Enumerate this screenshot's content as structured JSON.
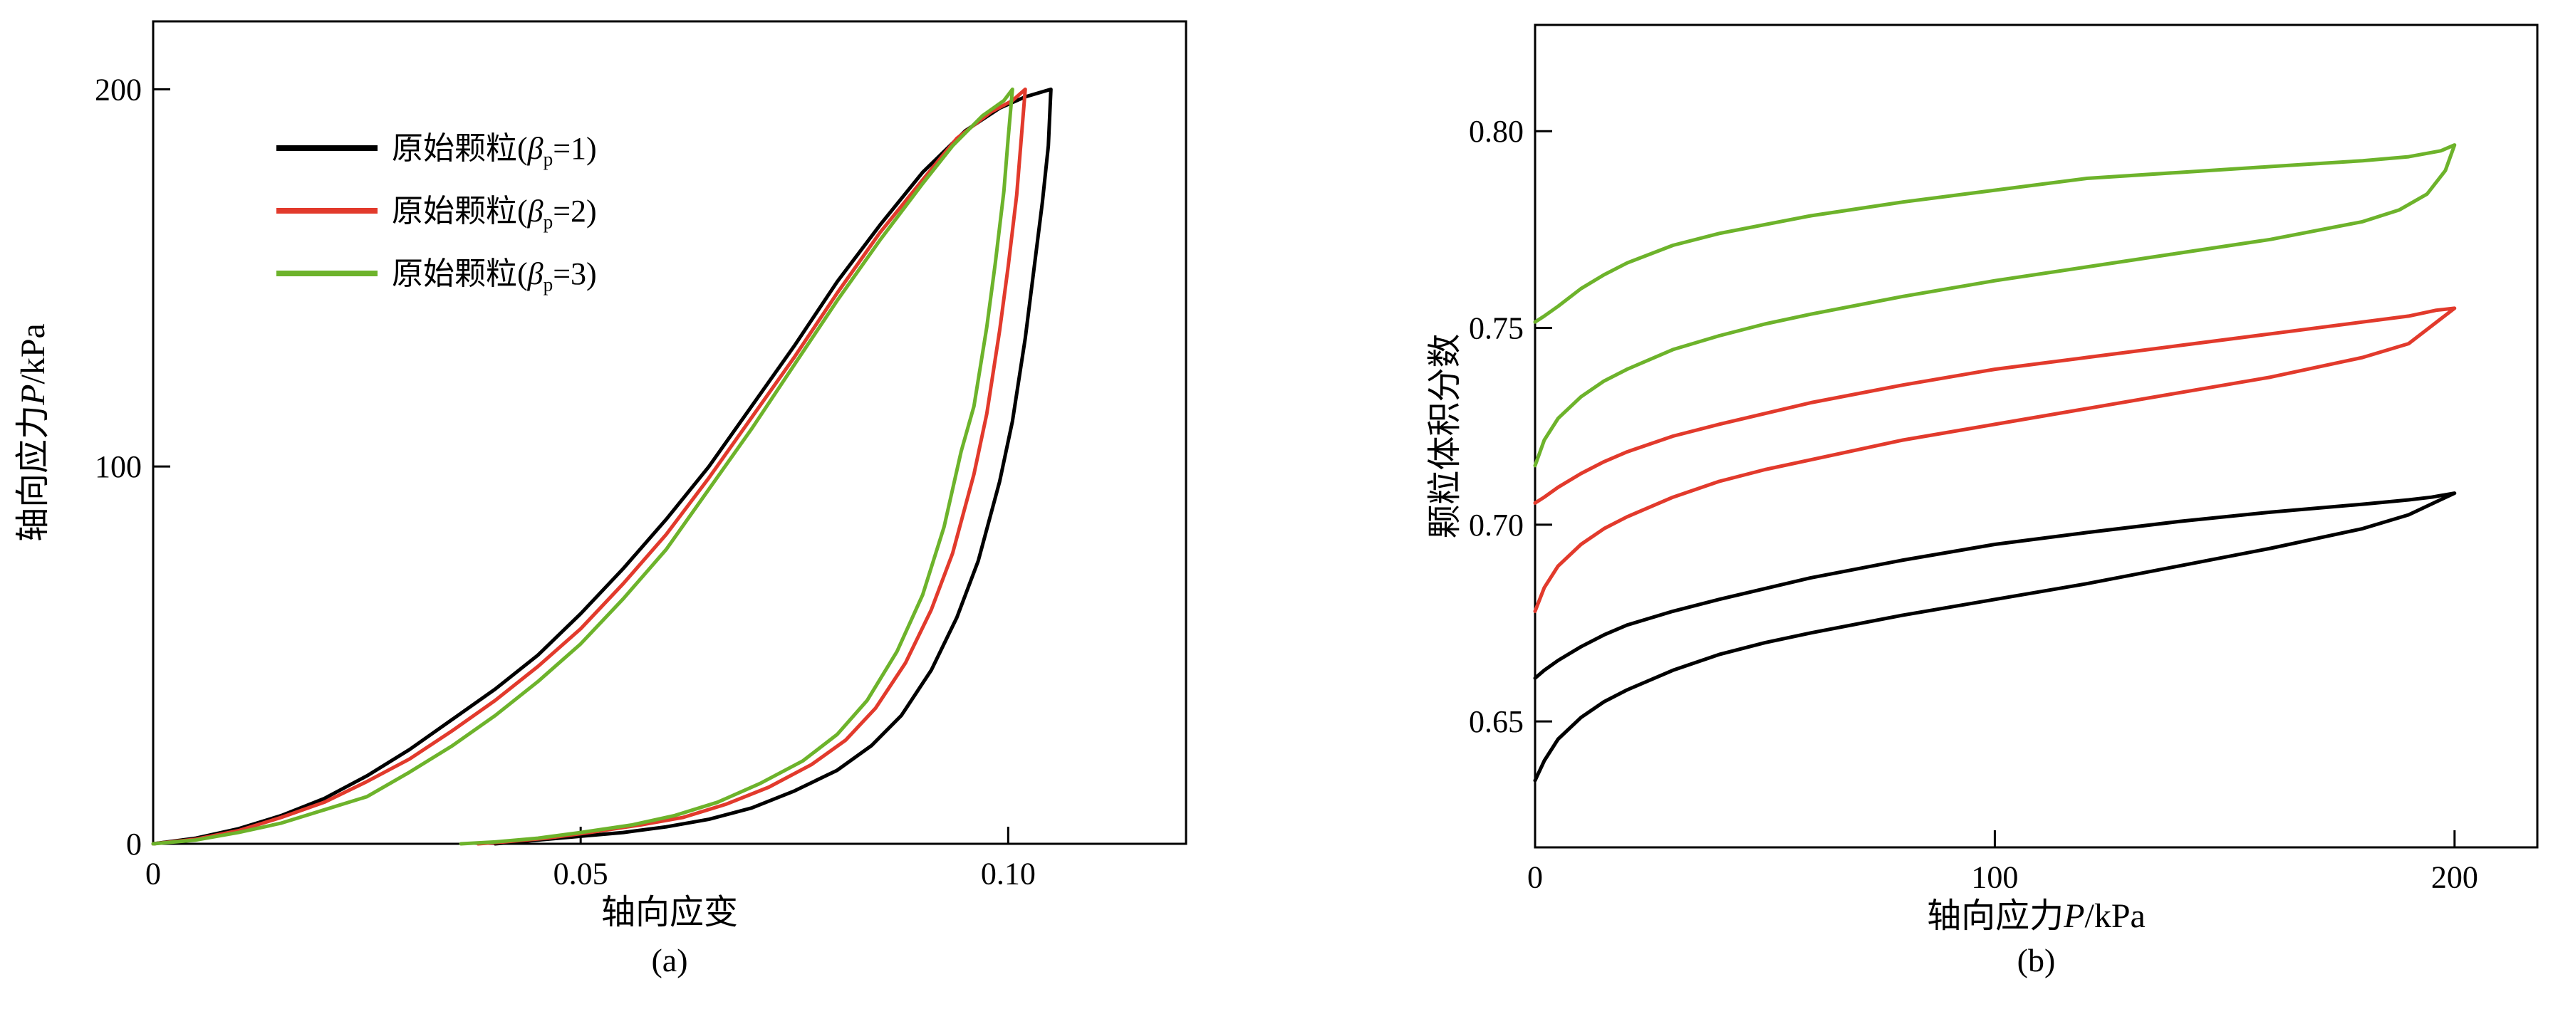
{
  "figure": {
    "background": "#ffffff",
    "axis_color": "#000000"
  },
  "chart_data": [
    {
      "id": "a",
      "type": "line",
      "caption": "(a)",
      "xlabel_parts": [
        {
          "t": "轴向应变"
        }
      ],
      "ylabel_parts": [
        {
          "t": "轴向应力"
        },
        {
          "t": "P",
          "i": true
        },
        {
          "t": "/kPa"
        }
      ],
      "xlim": [
        0,
        0.1208
      ],
      "ylim": [
        0,
        218
      ],
      "xticks": [
        0,
        0.05,
        0.1
      ],
      "xtick_labels": [
        "0",
        "0.05",
        "0.10"
      ],
      "yticks": [
        0,
        100,
        200
      ],
      "ytick_labels": [
        "0",
        "100",
        "200"
      ],
      "grid": false,
      "legend_position": "upper-left",
      "legend": [
        {
          "name": "original-particles-beta-1",
          "color": "#000000",
          "parts": [
            {
              "t": "原始颗粒("
            },
            {
              "t": "β",
              "i": true
            },
            {
              "t": "p",
              "sub": true
            },
            {
              "t": "=1)"
            }
          ]
        },
        {
          "name": "original-particles-beta-2",
          "color": "#e23a2c",
          "parts": [
            {
              "t": "原始颗粒("
            },
            {
              "t": "β",
              "i": true
            },
            {
              "t": "p",
              "sub": true
            },
            {
              "t": "=2)"
            }
          ]
        },
        {
          "name": "original-particles-beta-3",
          "color": "#6db32b",
          "parts": [
            {
              "t": "原始颗粒("
            },
            {
              "t": "β",
              "i": true
            },
            {
              "t": "p",
              "sub": true
            },
            {
              "t": "=3)"
            }
          ]
        }
      ],
      "series": [
        {
          "name": "original-particles-beta-1",
          "color": "#000000",
          "points": [
            [
              0,
              0
            ],
            [
              0.005,
              1.5
            ],
            [
              0.01,
              4
            ],
            [
              0.015,
              7.5
            ],
            [
              0.02,
              12
            ],
            [
              0.025,
              18
            ],
            [
              0.03,
              25
            ],
            [
              0.035,
              33
            ],
            [
              0.04,
              41
            ],
            [
              0.045,
              50
            ],
            [
              0.05,
              61
            ],
            [
              0.055,
              73
            ],
            [
              0.06,
              86
            ],
            [
              0.065,
              100
            ],
            [
              0.07,
              116
            ],
            [
              0.075,
              132
            ],
            [
              0.08,
              149
            ],
            [
              0.085,
              164
            ],
            [
              0.09,
              178
            ],
            [
              0.095,
              189
            ],
            [
              0.099,
              195
            ],
            [
              0.102,
              198
            ],
            [
              0.105,
              200
            ],
            [
              0.1047,
              185
            ],
            [
              0.104,
              170
            ],
            [
              0.103,
              152
            ],
            [
              0.102,
              134
            ],
            [
              0.1005,
              112
            ],
            [
              0.099,
              96
            ],
            [
              0.0965,
              75
            ],
            [
              0.094,
              60
            ],
            [
              0.091,
              46
            ],
            [
              0.0875,
              34
            ],
            [
              0.084,
              26
            ],
            [
              0.08,
              19.5
            ],
            [
              0.075,
              14
            ],
            [
              0.07,
              9.5
            ],
            [
              0.065,
              6.5
            ],
            [
              0.06,
              4.5
            ],
            [
              0.055,
              3
            ],
            [
              0.05,
              2
            ],
            [
              0.045,
              1
            ],
            [
              0.04,
              0
            ]
          ]
        },
        {
          "name": "original-particles-beta-2",
          "color": "#e23a2c",
          "points": [
            [
              0,
              0
            ],
            [
              0.005,
              1.2
            ],
            [
              0.01,
              3.5
            ],
            [
              0.015,
              7
            ],
            [
              0.02,
              11
            ],
            [
              0.025,
              16.5
            ],
            [
              0.03,
              22.5
            ],
            [
              0.035,
              30
            ],
            [
              0.04,
              38
            ],
            [
              0.045,
              47
            ],
            [
              0.05,
              57
            ],
            [
              0.055,
              69
            ],
            [
              0.06,
              82
            ],
            [
              0.065,
              97
            ],
            [
              0.07,
              113
            ],
            [
              0.075,
              129
            ],
            [
              0.08,
              146
            ],
            [
              0.085,
              162
            ],
            [
              0.09,
              176
            ],
            [
              0.094,
              187
            ],
            [
              0.098,
              194
            ],
            [
              0.1005,
              197
            ],
            [
              0.102,
              200
            ],
            [
              0.1015,
              186
            ],
            [
              0.101,
              172
            ],
            [
              0.1,
              153
            ],
            [
              0.099,
              136
            ],
            [
              0.0975,
              114
            ],
            [
              0.096,
              98
            ],
            [
              0.0935,
              77
            ],
            [
              0.091,
              62
            ],
            [
              0.088,
              48
            ],
            [
              0.0845,
              36
            ],
            [
              0.081,
              27.5
            ],
            [
              0.077,
              21
            ],
            [
              0.072,
              15
            ],
            [
              0.067,
              10.5
            ],
            [
              0.062,
              7
            ],
            [
              0.057,
              5
            ],
            [
              0.051,
              3
            ],
            [
              0.046,
              1.5
            ],
            [
              0.041,
              0.5
            ],
            [
              0.038,
              0
            ]
          ]
        },
        {
          "name": "original-particles-beta-3",
          "color": "#6db32b",
          "points": [
            [
              0,
              0
            ],
            [
              0.005,
              1
            ],
            [
              0.01,
              3
            ],
            [
              0.015,
              5.5
            ],
            [
              0.02,
              9
            ],
            [
              0.025,
              12.5
            ],
            [
              0.03,
              19
            ],
            [
              0.035,
              26
            ],
            [
              0.04,
              34
            ],
            [
              0.045,
              43
            ],
            [
              0.05,
              53
            ],
            [
              0.055,
              65
            ],
            [
              0.06,
              78
            ],
            [
              0.065,
              94
            ],
            [
              0.07,
              110
            ],
            [
              0.075,
              127
            ],
            [
              0.08,
              144
            ],
            [
              0.085,
              160
            ],
            [
              0.09,
              175
            ],
            [
              0.0935,
              185
            ],
            [
              0.097,
              193
            ],
            [
              0.0995,
              197
            ],
            [
              0.1005,
              200
            ],
            [
              0.1,
              187
            ],
            [
              0.0995,
              173
            ],
            [
              0.0985,
              154
            ],
            [
              0.0975,
              137
            ],
            [
              0.096,
              116
            ],
            [
              0.0945,
              104
            ],
            [
              0.0925,
              84
            ],
            [
              0.09,
              66
            ],
            [
              0.087,
              51
            ],
            [
              0.0835,
              38
            ],
            [
              0.08,
              29
            ],
            [
              0.076,
              22
            ],
            [
              0.071,
              16
            ],
            [
              0.066,
              11
            ],
            [
              0.061,
              7.5
            ],
            [
              0.056,
              5
            ],
            [
              0.05,
              3
            ],
            [
              0.045,
              1.5
            ],
            [
              0.04,
              0.5
            ],
            [
              0.036,
              0
            ]
          ]
        }
      ]
    },
    {
      "id": "b",
      "type": "line",
      "caption": "(b)",
      "xlabel_parts": [
        {
          "t": "轴向应力"
        },
        {
          "t": "P",
          "i": true
        },
        {
          "t": "/kPa"
        }
      ],
      "ylabel_parts": [
        {
          "t": "颗粒体积分数"
        }
      ],
      "xlim": [
        0,
        218
      ],
      "ylim": [
        0.618,
        0.827
      ],
      "xticks": [
        0,
        100,
        200
      ],
      "xtick_labels": [
        "0",
        "100",
        "200"
      ],
      "yticks": [
        0.65,
        0.7,
        0.75,
        0.8
      ],
      "ytick_labels": [
        "0.65",
        "0.70",
        "0.75",
        "0.80"
      ],
      "grid": false,
      "legend": [],
      "series": [
        {
          "name": "original-particles-beta-1",
          "color": "#000000",
          "points": [
            [
              0,
              0.635
            ],
            [
              2,
              0.64
            ],
            [
              5,
              0.6455
            ],
            [
              10,
              0.651
            ],
            [
              15,
              0.655
            ],
            [
              20,
              0.658
            ],
            [
              30,
              0.663
            ],
            [
              40,
              0.667
            ],
            [
              50,
              0.67
            ],
            [
              60,
              0.6725
            ],
            [
              80,
              0.677
            ],
            [
              100,
              0.681
            ],
            [
              120,
              0.685
            ],
            [
              140,
              0.6895
            ],
            [
              160,
              0.694
            ],
            [
              180,
              0.699
            ],
            [
              190,
              0.7025
            ],
            [
              200,
              0.708
            ],
            [
              195,
              0.707
            ],
            [
              190,
              0.7063
            ],
            [
              180,
              0.7052
            ],
            [
              160,
              0.7032
            ],
            [
              140,
              0.7008
            ],
            [
              120,
              0.698
            ],
            [
              100,
              0.695
            ],
            [
              80,
              0.691
            ],
            [
              60,
              0.6865
            ],
            [
              40,
              0.681
            ],
            [
              30,
              0.678
            ],
            [
              20,
              0.6745
            ],
            [
              15,
              0.672
            ],
            [
              10,
              0.669
            ],
            [
              5,
              0.6655
            ],
            [
              2,
              0.663
            ],
            [
              0,
              0.661
            ]
          ]
        },
        {
          "name": "original-particles-beta-2",
          "color": "#e23a2c",
          "points": [
            [
              0,
              0.678
            ],
            [
              2,
              0.684
            ],
            [
              5,
              0.6895
            ],
            [
              10,
              0.695
            ],
            [
              15,
              0.699
            ],
            [
              20,
              0.702
            ],
            [
              30,
              0.707
            ],
            [
              40,
              0.711
            ],
            [
              50,
              0.714
            ],
            [
              60,
              0.7165
            ],
            [
              80,
              0.7215
            ],
            [
              100,
              0.7255
            ],
            [
              120,
              0.7295
            ],
            [
              140,
              0.7335
            ],
            [
              160,
              0.7375
            ],
            [
              180,
              0.7425
            ],
            [
              190,
              0.746
            ],
            [
              200,
              0.755
            ],
            [
              196,
              0.7545
            ],
            [
              190,
              0.753
            ],
            [
              180,
              0.7515
            ],
            [
              160,
              0.7485
            ],
            [
              140,
              0.7455
            ],
            [
              120,
              0.7425
            ],
            [
              100,
              0.7395
            ],
            [
              80,
              0.7355
            ],
            [
              60,
              0.731
            ],
            [
              40,
              0.7255
            ],
            [
              30,
              0.7225
            ],
            [
              20,
              0.7185
            ],
            [
              15,
              0.716
            ],
            [
              10,
              0.713
            ],
            [
              5,
              0.7095
            ],
            [
              2,
              0.707
            ],
            [
              0,
              0.7055
            ]
          ]
        },
        {
          "name": "original-particles-beta-3",
          "color": "#6db32b",
          "points": [
            [
              0,
              0.715
            ],
            [
              2,
              0.7215
            ],
            [
              5,
              0.727
            ],
            [
              10,
              0.7325
            ],
            [
              15,
              0.7365
            ],
            [
              20,
              0.7395
            ],
            [
              30,
              0.7445
            ],
            [
              40,
              0.748
            ],
            [
              50,
              0.751
            ],
            [
              60,
              0.7535
            ],
            [
              80,
              0.758
            ],
            [
              100,
              0.762
            ],
            [
              120,
              0.7655
            ],
            [
              140,
              0.769
            ],
            [
              160,
              0.7725
            ],
            [
              180,
              0.777
            ],
            [
              188,
              0.78
            ],
            [
              194,
              0.784
            ],
            [
              198,
              0.79
            ],
            [
              200,
              0.7965
            ],
            [
              197,
              0.795
            ],
            [
              190,
              0.7935
            ],
            [
              180,
              0.7925
            ],
            [
              160,
              0.791
            ],
            [
              140,
              0.7895
            ],
            [
              120,
              0.788
            ],
            [
              100,
              0.785
            ],
            [
              80,
              0.782
            ],
            [
              60,
              0.7785
            ],
            [
              40,
              0.774
            ],
            [
              30,
              0.771
            ],
            [
              20,
              0.7665
            ],
            [
              15,
              0.7635
            ],
            [
              10,
              0.76
            ],
            [
              5,
              0.7555
            ],
            [
              2,
              0.753
            ],
            [
              0,
              0.7515
            ]
          ]
        }
      ]
    }
  ]
}
